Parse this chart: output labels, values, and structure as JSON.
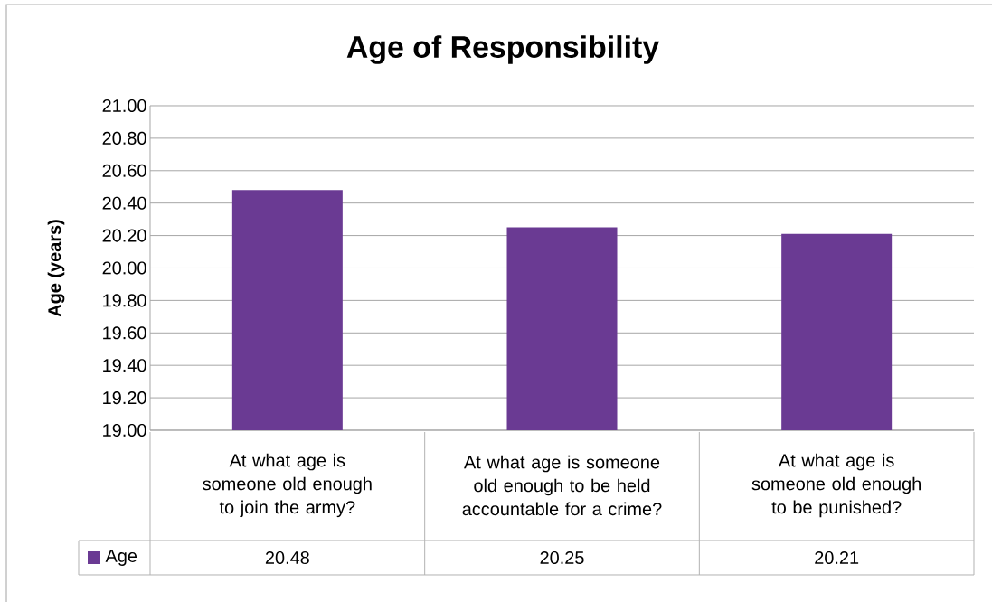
{
  "chart_data": {
    "type": "bar",
    "title": "Age of Responsibility",
    "ylabel": "Age (years)",
    "categories": [
      "At what age is someone old enough to join the army?",
      "At what age is someone old enough to be held accountable for a crime?",
      "At what age is someone old enough to be punished?"
    ],
    "series": [
      {
        "name": "Age",
        "color": "#6a3a93",
        "values": [
          20.48,
          20.25,
          20.21
        ]
      }
    ],
    "ylim": [
      19,
      21
    ],
    "yticks": [
      {
        "value": 19,
        "label": "19.00"
      },
      {
        "value": 19.2,
        "label": "19.20"
      },
      {
        "value": 19.4,
        "label": "19.40"
      },
      {
        "value": 19.6,
        "label": "19.60"
      },
      {
        "value": 19.8,
        "label": "19.80"
      },
      {
        "value": 20,
        "label": "20.00"
      },
      {
        "value": 20.2,
        "label": "20.20"
      },
      {
        "value": 20.4,
        "label": "20.40"
      },
      {
        "value": 20.6,
        "label": "20.60"
      },
      {
        "value": 20.8,
        "label": "20.80"
      },
      {
        "value": 21,
        "label": "21.00"
      }
    ],
    "grid": "y",
    "legend": "bottom left",
    "data_labels": true
  }
}
